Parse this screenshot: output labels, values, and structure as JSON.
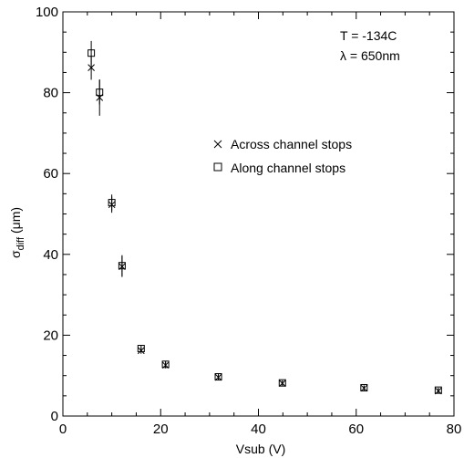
{
  "chart_data": {
    "type": "scatter",
    "xlabel": "Vsub (V)",
    "ylabel_main": "σ",
    "ylabel_sub": "diff",
    "ylabel_unit": " (μm)",
    "xlim": [
      0,
      80
    ],
    "ylim": [
      0,
      100
    ],
    "xticks": [
      0,
      20,
      40,
      60,
      80
    ],
    "yticks": [
      0,
      20,
      40,
      60,
      80,
      100
    ],
    "xticks_minor_step": 5,
    "yticks_minor_step": 5,
    "grid": false,
    "legend_position": "center-right",
    "annotations": [
      "T = -134C",
      "λ = 650nm"
    ],
    "series": [
      {
        "name": "Across channel stops",
        "marker": "x",
        "points": [
          {
            "x": 5.8,
            "y": 86.2,
            "err": 3.0
          },
          {
            "x": 7.5,
            "y": 78.8,
            "err": 4.5
          },
          {
            "x": 10.0,
            "y": 52.3,
            "err": 2.0
          },
          {
            "x": 12.1,
            "y": 37.0,
            "err": 2.6
          },
          {
            "x": 16.0,
            "y": 16.2,
            "err": 0.8
          },
          {
            "x": 21.0,
            "y": 12.6,
            "err": 0.8
          },
          {
            "x": 31.8,
            "y": 9.6,
            "err": 0.8
          },
          {
            "x": 44.9,
            "y": 8.1,
            "err": 0.6
          },
          {
            "x": 61.6,
            "y": 6.9,
            "err": 0.6
          },
          {
            "x": 76.8,
            "y": 6.2,
            "err": 0.6
          }
        ]
      },
      {
        "name": "Along channel stops",
        "marker": "square",
        "points": [
          {
            "x": 5.8,
            "y": 89.8,
            "err": 3.0
          },
          {
            "x": 7.5,
            "y": 80.1,
            "err": 3.0
          },
          {
            "x": 10.0,
            "y": 52.8,
            "err": 2.0
          },
          {
            "x": 12.1,
            "y": 37.2,
            "err": 2.6
          },
          {
            "x": 16.0,
            "y": 16.7,
            "err": 0.8
          },
          {
            "x": 21.0,
            "y": 12.8,
            "err": 0.8
          },
          {
            "x": 31.8,
            "y": 9.7,
            "err": 0.8
          },
          {
            "x": 44.9,
            "y": 8.2,
            "err": 0.6
          },
          {
            "x": 61.6,
            "y": 7.0,
            "err": 0.6
          },
          {
            "x": 76.8,
            "y": 6.4,
            "err": 0.6
          }
        ]
      }
    ]
  }
}
